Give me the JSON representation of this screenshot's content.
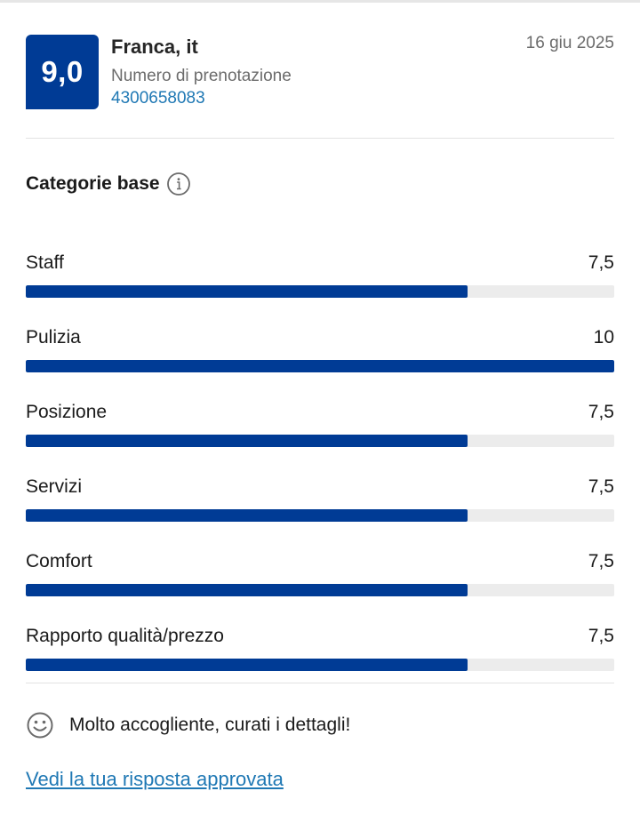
{
  "review": {
    "score": "9,0",
    "reviewer": "Franca, it",
    "booking_label": "Numero di prenotazione",
    "booking_number": "4300658083",
    "date": "16 giu 2025"
  },
  "section": {
    "title": "Categorie base",
    "info_icon": "info-icon"
  },
  "categories": [
    {
      "label": "Staff",
      "score": "7,5",
      "fraction": 0.75
    },
    {
      "label": "Pulizia",
      "score": "10",
      "fraction": 1.0
    },
    {
      "label": "Posizione",
      "score": "7,5",
      "fraction": 0.75
    },
    {
      "label": "Servizi",
      "score": "7,5",
      "fraction": 0.75
    },
    {
      "label": "Comfort",
      "score": "7,5",
      "fraction": 0.75
    },
    {
      "label": "Rapporto qualità/prezzo",
      "score": "7,5",
      "fraction": 0.75
    }
  ],
  "comment": {
    "icon": "smile-icon",
    "text": "Molto accogliente, curati i dettagli!"
  },
  "link": {
    "label": "Vedi la tua risposta approvata"
  },
  "colors": {
    "brand": "#003b95",
    "track": "#ececec",
    "link": "#1f78b4"
  }
}
